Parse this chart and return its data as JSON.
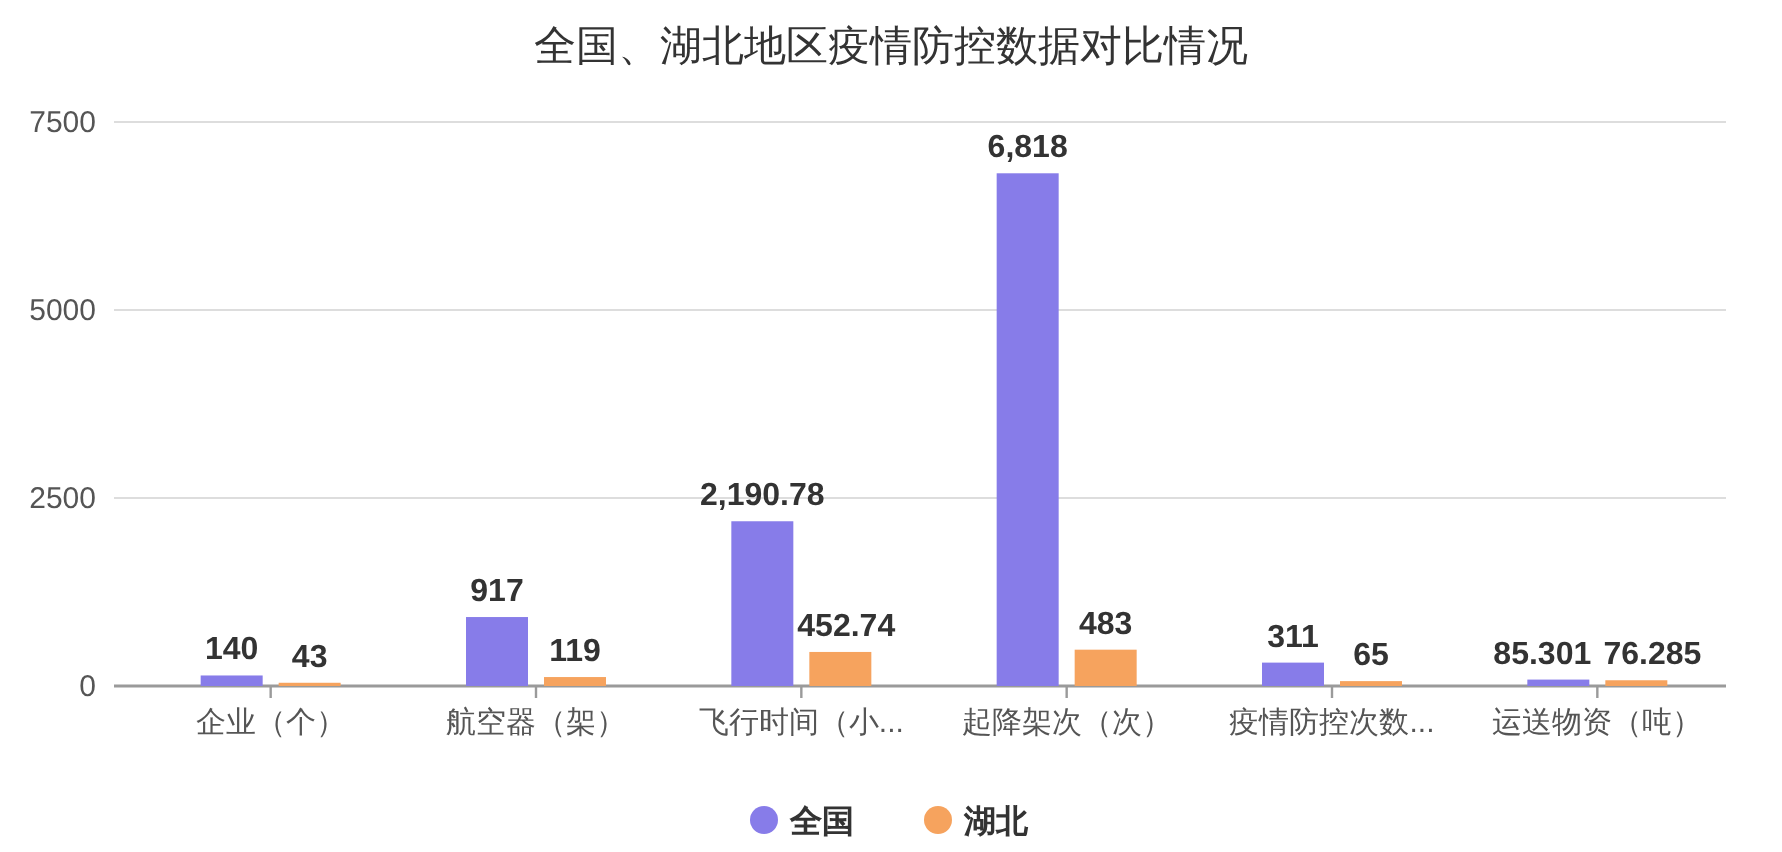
{
  "chart_data": {
    "type": "bar",
    "title": "全国、湖北地区疫情防控数据对比情况",
    "categories": [
      "企业（个）",
      "航空器（架）",
      "飞行时间（小...",
      "起降架次（次）",
      "疫情防控次数...",
      "运送物资（吨）"
    ],
    "series": [
      {
        "name": "全国",
        "color": "#877ce9",
        "values": [
          140,
          917,
          2190.78,
          6818,
          311,
          85.301
        ],
        "value_labels": [
          "140",
          "917",
          "2,190.78",
          "6,818",
          "311",
          "85.301"
        ]
      },
      {
        "name": "湖北",
        "color": "#f6a35e",
        "values": [
          43,
          119,
          452.74,
          483,
          65,
          76.285
        ],
        "value_labels": [
          "43",
          "119",
          "452.74",
          "483",
          "65",
          "76.285"
        ]
      }
    ],
    "ylim": [
      0,
      7500
    ],
    "yticks": [
      0,
      2500,
      5000,
      7500
    ],
    "grid": "y",
    "legend": "bottom"
  }
}
